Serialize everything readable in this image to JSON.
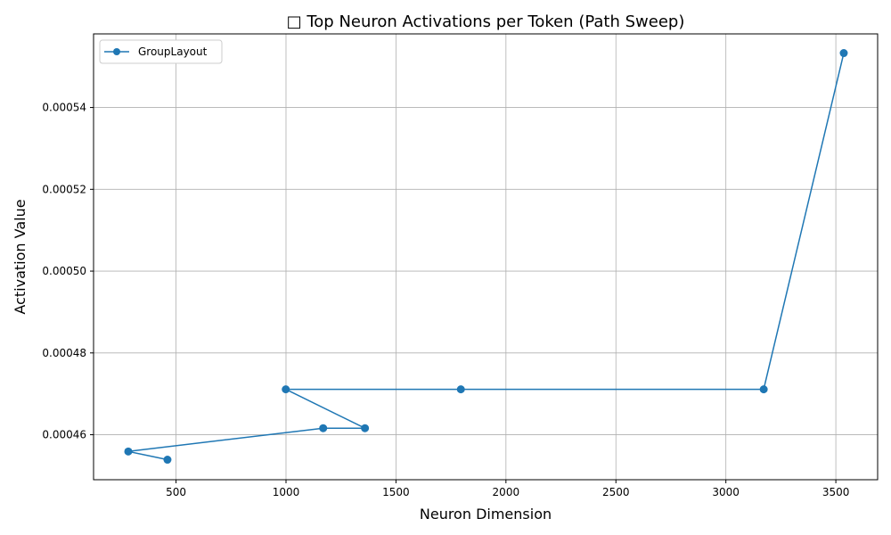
{
  "chart_data": {
    "type": "line",
    "title": "□ Top Neuron Activations per Token (Path Sweep)",
    "xlabel": "Neuron Dimension",
    "ylabel": "Activation Value",
    "xlim": [
      125,
      3690
    ],
    "ylim": [
      0.000449,
      0.000558
    ],
    "xticks": [
      500,
      1000,
      1500,
      2000,
      2500,
      3000,
      3500
    ],
    "yticks": [
      0.00046,
      0.00048,
      0.0005,
      0.00052,
      0.00054
    ],
    "xtick_labels": [
      "500",
      "1000",
      "1500",
      "2000",
      "2500",
      "3000",
      "3500"
    ],
    "ytick_labels": [
      "0.00046",
      "0.00048",
      "0.00050",
      "0.00052",
      "0.00054"
    ],
    "grid": true,
    "legend_position": "top-left",
    "series": [
      {
        "name": "GroupLayout",
        "color": "#1f77b4",
        "marker": "circle",
        "x": [
          3536,
          3172,
          1795,
          999,
          1359,
          1169,
          283,
          461
        ],
        "y": [
          0.0005533,
          0.0004711,
          0.0004711,
          0.0004711,
          0.0004616,
          0.0004616,
          0.0004559,
          0.0004539
        ]
      }
    ]
  }
}
